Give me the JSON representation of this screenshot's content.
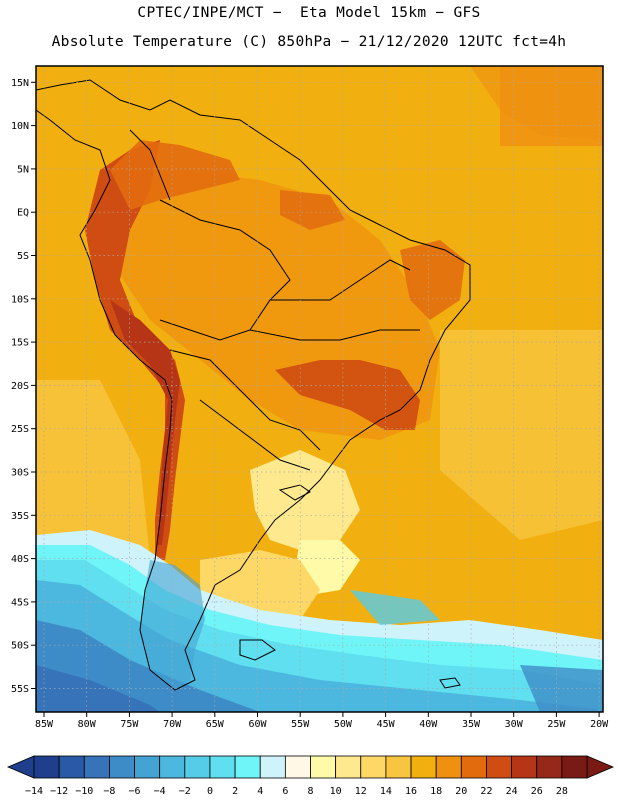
{
  "header": {
    "line1": "CPTEC/INPE/MCT −  Eta Model 15km − GFS",
    "line2": "Absolute Temperature (C) 850hPa − 21/12/2020 12UTC fct=4h"
  },
  "map": {
    "lat_labels": [
      "15N",
      "10N",
      "5N",
      "EQ",
      "5S",
      "10S",
      "15S",
      "20S",
      "25S",
      "30S",
      "35S",
      "40S",
      "45S",
      "50S",
      "55S"
    ],
    "lon_labels": [
      "85W",
      "80W",
      "75W",
      "70W",
      "65W",
      "60W",
      "55W",
      "50W",
      "45W",
      "40W",
      "35W",
      "30W",
      "25W",
      "20W"
    ],
    "gridlines": "dotted"
  },
  "colorbar": {
    "labels": [
      "−14",
      "−12",
      "−10",
      "−8",
      "−6",
      "−4",
      "−2",
      "0",
      "2",
      "4",
      "6",
      "8",
      "10",
      "12",
      "14",
      "16",
      "18",
      "20",
      "22",
      "24",
      "26",
      "28"
    ],
    "colors": [
      "#1f3f8c",
      "#2a5aa6",
      "#3673b8",
      "#3e8cc7",
      "#45a3d3",
      "#4db8df",
      "#55cce8",
      "#5fdff0",
      "#6ff5f7",
      "#cff3fb",
      "#fff8e6",
      "#fffaa8",
      "#fee98e",
      "#fdd866",
      "#f8c540",
      "#f2b010",
      "#ef9010",
      "#e26b0e",
      "#cf4c12",
      "#b53516",
      "#952818",
      "#7a1a14"
    ],
    "under_color": "#1f3f8c",
    "over_color": "#7a1a14"
  }
}
